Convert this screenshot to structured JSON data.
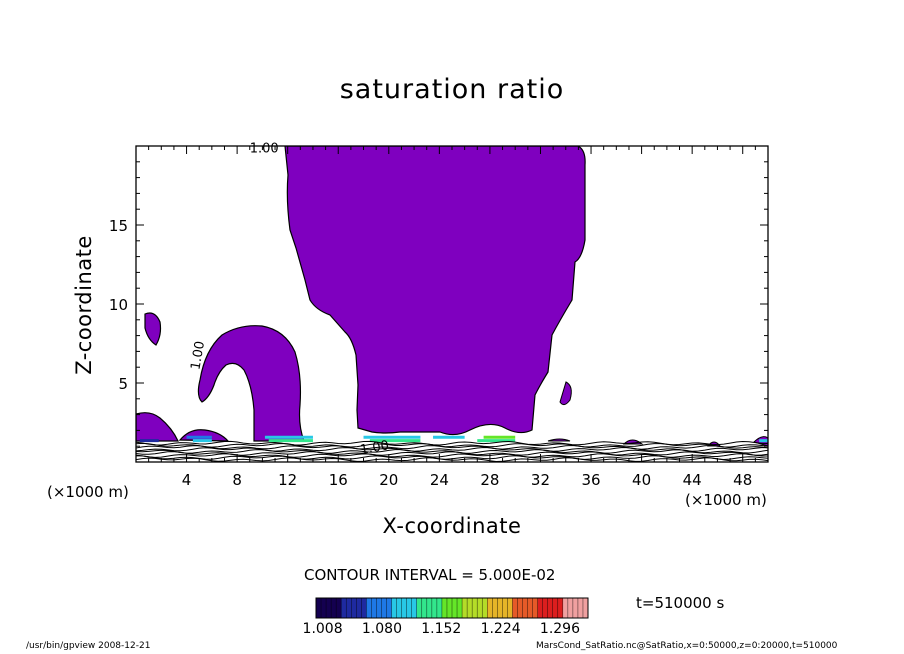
{
  "chart_data": {
    "type": "heatmap",
    "title": "saturation ratio",
    "xlabel": "X-coordinate",
    "ylabel": "Z-coordinate",
    "x_unit_label": "(×1000 m)",
    "xlim": [
      0,
      50
    ],
    "ylim": [
      0,
      20
    ],
    "x_ticks": [
      4,
      8,
      12,
      16,
      20,
      24,
      28,
      32,
      36,
      40,
      44,
      48
    ],
    "y_ticks": [
      5,
      10,
      15
    ],
    "contour_labels": [
      "1.00",
      "1.00",
      "1.00"
    ],
    "contour_interval": "CONTOUR INTERVAL = 5.000E-02",
    "colorbar_ticks": [
      "1.008",
      "1.080",
      "1.152",
      "1.224",
      "1.296"
    ],
    "colorbar_range": [
      1.0,
      1.33
    ],
    "time_label": "t=510000 s",
    "fill_color": "#7f00bf",
    "colormap": [
      "#140050",
      "#1e2aa0",
      "#1e78e6",
      "#28c8e6",
      "#32e68c",
      "#64e628",
      "#b4dc28",
      "#e6b428",
      "#e65a28",
      "#dc1e1e",
      "#f0a0a0"
    ]
  },
  "footer": {
    "left": "/usr/bin/gpview   2008-12-21",
    "right": "MarsCond_SatRatio.nc@SatRatio,x=0:50000,z=0:20000,t=510000"
  }
}
